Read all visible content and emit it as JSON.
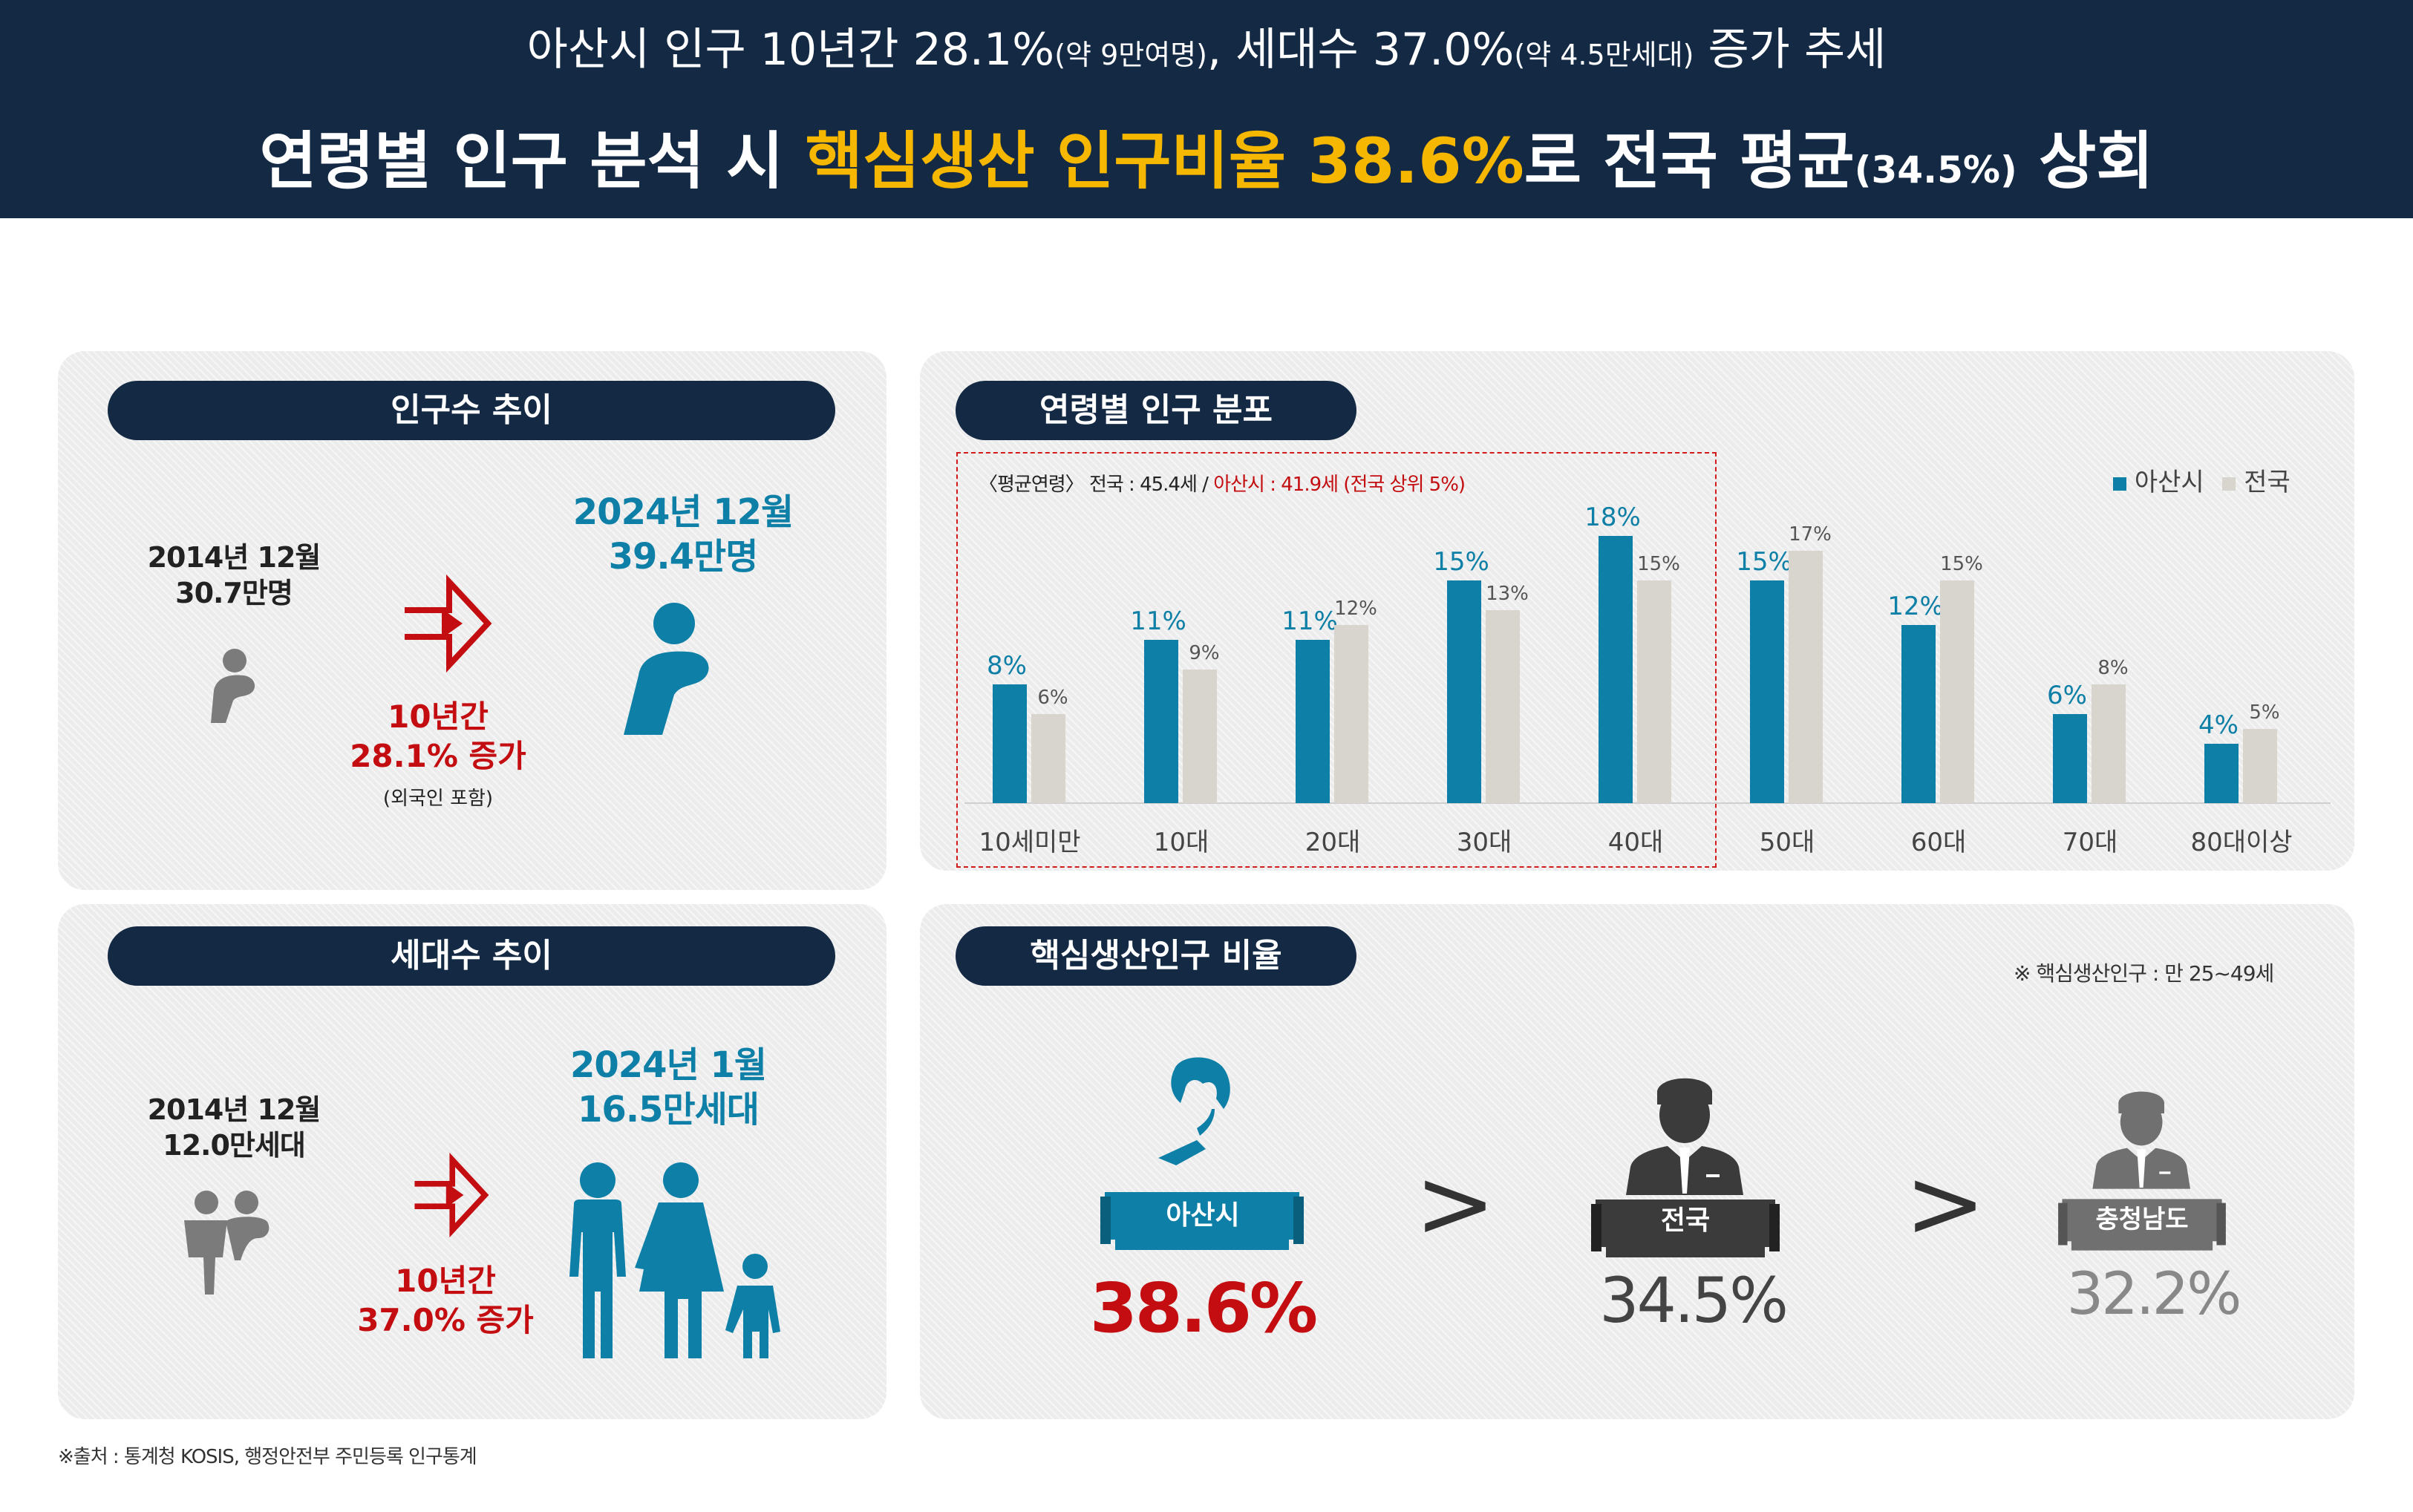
{
  "header": {
    "subtitle_main": "아산시 인구 10년간 28.1%",
    "subtitle_note1": "(약 9만여명)",
    "subtitle_mid": ", 세대수 37.0%",
    "subtitle_note2": "(약 4.5만세대)",
    "subtitle_end": " 증가 추세",
    "title_pre": "연령별 인구 분석 시 ",
    "title_highlight": "핵심생산 인구비율 38.6%",
    "title_mid": "로 전국 평균",
    "title_small": "(34.5%)",
    "title_end": " 상회"
  },
  "population": {
    "title": "인구수 추이",
    "before_date": "2014년 12월",
    "before_value": "30.7만명",
    "after_date": "2024년 12월",
    "after_value": "39.4만명",
    "change_period": "10년간",
    "change_value": "28.1% 증가",
    "change_note": "(외국인 포함)"
  },
  "households": {
    "title": "세대수 추이",
    "before_date": "2014년 12월",
    "before_value": "12.0만세대",
    "after_date": "2024년 1월",
    "after_value": "16.5만세대",
    "change_period": "10년간",
    "change_value": "37.0% 증가"
  },
  "age_distribution": {
    "title": "연령별 인구 분포",
    "note_prefix": "〈평균연령〉 전국 : 45.4세 / ",
    "note_highlight": "아산시 : 41.9세 (전국 상위 5%)"
  },
  "chart_data": {
    "type": "bar",
    "categories": [
      "10세미만",
      "10대",
      "20대",
      "30대",
      "40대",
      "50대",
      "60대",
      "70대",
      "80대이상"
    ],
    "series": [
      {
        "name": "아산시",
        "values": [
          8,
          11,
          11,
          15,
          18,
          15,
          12,
          6,
          4
        ],
        "labels": [
          "8%",
          "11%",
          "11%",
          "15%",
          "18%",
          "15%",
          "12%",
          "6%",
          "4%"
        ],
        "color": "#0e7fa6"
      },
      {
        "name": "전국",
        "values": [
          6,
          9,
          12,
          13,
          15,
          17,
          15,
          8,
          5
        ],
        "labels": [
          "6%",
          "9%",
          "12%",
          "13%",
          "15%",
          "17%",
          "15%",
          "8%",
          "5%"
        ],
        "color": "#d8d5cf"
      }
    ],
    "ylim": [
      0,
      20
    ],
    "legend": "top-right",
    "grid": false,
    "highlight_categories": [
      "10세미만",
      "10대",
      "20대",
      "30대",
      "40대"
    ]
  },
  "core_ratio": {
    "title": "핵심생산인구 비율",
    "note": "※ 핵심생산인구 : 만 25~49세",
    "items": [
      {
        "label": "아산시",
        "value": "38.6%"
      },
      {
        "label": "전국",
        "value": "34.5%"
      },
      {
        "label": "충청남도",
        "value": "32.2%"
      }
    ],
    "comparator": ">"
  },
  "source": "※출처 : 통계청 KOSIS, 행정안전부 주민등록 인구통계"
}
